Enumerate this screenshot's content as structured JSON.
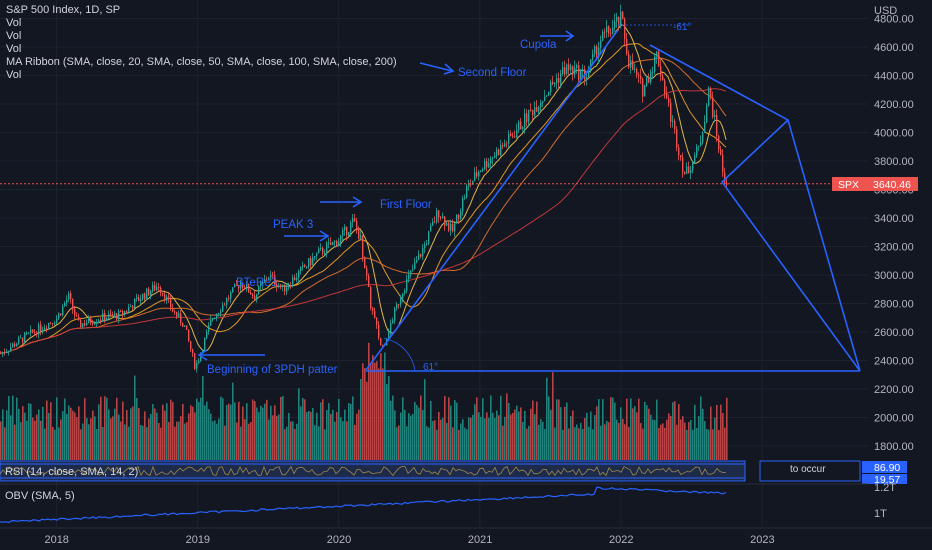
{
  "header": {
    "symbol_line": "S&P 500 Index, 1D, SP",
    "vol_1": "Vol",
    "vol_2": "Vol",
    "vol_3": "Vol",
    "ma_ribbon": "MA Ribbon (SMA, close, 20, SMA, close, 50, SMA, close, 100, SMA, close, 200)",
    "vol_4": "Vol"
  },
  "annotations": {
    "cupola": "Cupola",
    "second_floor": "Second Floor",
    "first_floor": "First Floor",
    "peak3": "PEAK 3",
    "btr": "BTeRe3",
    "beginning": "Beginning of 3PDH patter",
    "fib_top": "-61°",
    "fib_bottom": "61°",
    "to_occur": "to occur"
  },
  "panes": {
    "rsi_label": "RSI (14, close, SMA, 14, 2)",
    "rsi_value_1": "86.90",
    "rsi_value_2": "19.57",
    "obv_label": "OBV (SMA, 5)",
    "obv_tick_1": "1.2T",
    "obv_tick_2": "1T"
  },
  "price_tag": {
    "symbol": "SPX",
    "value": "3640.46"
  },
  "colors": {
    "background": "#131722",
    "up": "#26a69a",
    "down": "#ef5350",
    "drawing": "#2962ff",
    "price_line": "#ef5350",
    "ma20": "#f7c948",
    "ma50": "#f5a623",
    "ma100": "#e8762c",
    "ma200": "#d43c3c",
    "obv": "#2962ff"
  },
  "chart_data": {
    "type": "line",
    "title": "S&P 500 Index, 1D, SP",
    "y_axis_label": "USD",
    "y_ticks": [
      "4800.00",
      "4600.00",
      "4400.00",
      "4200.00",
      "4000.00",
      "3800.00",
      "3600.00",
      "3400.00",
      "3200.00",
      "3000.00",
      "2800.00",
      "2600.00",
      "2400.00",
      "2200.00",
      "2000.00",
      "1800.00"
    ],
    "x_ticks": [
      "2018",
      "2019",
      "2020",
      "2021",
      "2022",
      "2023"
    ],
    "ylim": [
      1600,
      4900
    ],
    "xlim": [
      2017.6,
      2023.75
    ],
    "scale": "log",
    "last_price": 3640.46,
    "series": [
      {
        "name": "SPX",
        "x": [
          2017.6,
          2017.75,
          2018.0,
          2018.08,
          2018.15,
          2018.3,
          2018.45,
          2018.6,
          2018.72,
          2018.82,
          2018.9,
          2018.98,
          2019.1,
          2019.3,
          2019.4,
          2019.5,
          2019.6,
          2019.7,
          2019.85,
          2020.0,
          2020.1,
          2020.15,
          2020.22,
          2020.3,
          2020.45,
          2020.6,
          2020.7,
          2020.8,
          2020.9,
          2021.0,
          2021.2,
          2021.4,
          2021.6,
          2021.75,
          2021.85,
          2022.0,
          2022.05,
          2022.15,
          2022.25,
          2022.35,
          2022.45,
          2022.55,
          2022.62,
          2022.68,
          2022.72,
          2022.75
        ],
        "y": [
          2450,
          2550,
          2700,
          2850,
          2650,
          2700,
          2720,
          2850,
          2930,
          2750,
          2650,
          2350,
          2700,
          2950,
          2850,
          3000,
          2900,
          3000,
          3150,
          3250,
          3380,
          3250,
          2800,
          2480,
          2900,
          3200,
          3450,
          3300,
          3600,
          3750,
          3950,
          4200,
          4450,
          4400,
          4650,
          4796,
          4500,
          4300,
          4550,
          4100,
          3700,
          3900,
          4300,
          3950,
          3700,
          3640
        ]
      }
    ]
  }
}
